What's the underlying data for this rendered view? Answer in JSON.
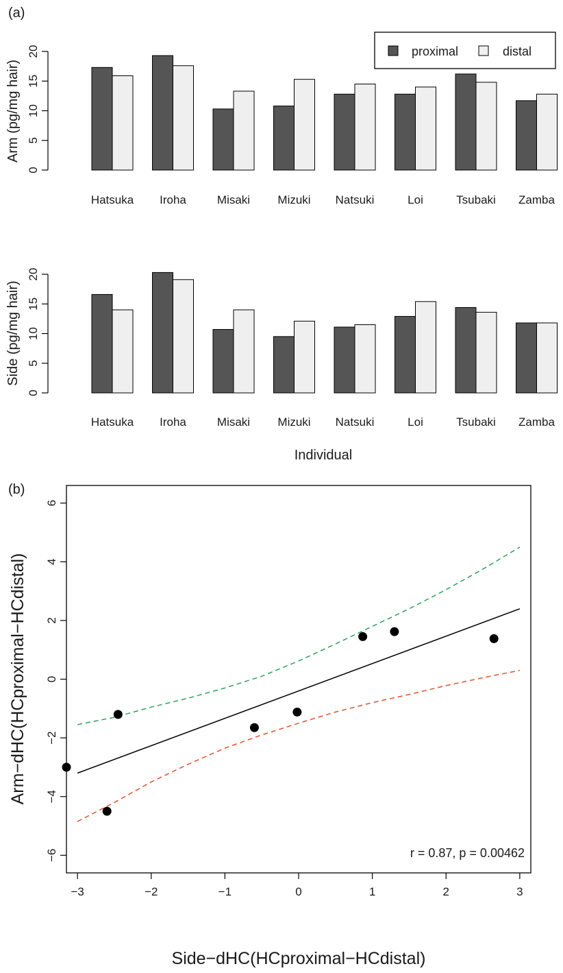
{
  "chart_data": [
    {
      "type": "bar",
      "panel_label": "(a)",
      "ylabel": "Arm (pg/mg hair)",
      "xlabel": "",
      "ylim": [
        0,
        20
      ],
      "yticks": [
        0,
        5,
        10,
        15,
        20
      ],
      "categories": [
        "Hatsuka",
        "Iroha",
        "Misaki",
        "Mizuki",
        "Natsuki",
        "Loi",
        "Tsubaki",
        "Zamba"
      ],
      "series": [
        {
          "name": "proximal",
          "color": "#555555",
          "values": [
            17.3,
            19.3,
            10.3,
            10.8,
            12.8,
            12.8,
            16.2,
            11.7
          ]
        },
        {
          "name": "distal",
          "color": "#efefef",
          "values": [
            15.9,
            17.6,
            13.3,
            15.3,
            14.5,
            14.0,
            14.8,
            12.8
          ]
        }
      ],
      "legend": {
        "position": "top-right",
        "entries": [
          "proximal",
          "distal"
        ]
      },
      "grid": false
    },
    {
      "type": "bar",
      "ylabel": "Side (pg/mg hair)",
      "xlabel": "Individual",
      "ylim": [
        0,
        20
      ],
      "yticks": [
        0,
        5,
        10,
        15,
        20
      ],
      "categories": [
        "Hatsuka",
        "Iroha",
        "Misaki",
        "Mizuki",
        "Natsuki",
        "Loi",
        "Tsubaki",
        "Zamba"
      ],
      "series": [
        {
          "name": "proximal",
          "color": "#555555",
          "values": [
            16.6,
            20.3,
            10.7,
            9.5,
            11.1,
            12.9,
            14.4,
            11.8
          ]
        },
        {
          "name": "distal",
          "color": "#efefef",
          "values": [
            14.0,
            19.1,
            14.0,
            12.1,
            11.5,
            15.4,
            13.6,
            11.8
          ]
        }
      ],
      "grid": false
    },
    {
      "type": "scatter",
      "panel_label": "(b)",
      "xlabel": "Side−dHC(HCproximal−HCdistal)",
      "ylabel": "Arm−dHC(HCproximal−HCdistal)",
      "xlim": [
        -3.15,
        3.15
      ],
      "ylim": [
        -6.6,
        6.6
      ],
      "xticks": [
        -3,
        -2,
        -1,
        0,
        1,
        2,
        3
      ],
      "xtick_labels": [
        "−3",
        "−2",
        "−1",
        "0",
        "1",
        "2",
        "3"
      ],
      "yticks": [
        -6,
        -4,
        -2,
        0,
        2,
        4,
        6
      ],
      "ytick_labels": [
        "−6",
        "−4",
        "−2",
        "0",
        "2",
        "4",
        "6"
      ],
      "points": [
        {
          "x": -3.15,
          "y": -3.0
        },
        {
          "x": -2.6,
          "y": -4.5
        },
        {
          "x": -2.45,
          "y": -1.2
        },
        {
          "x": -0.6,
          "y": -1.65
        },
        {
          "x": -0.02,
          "y": -1.12
        },
        {
          "x": 0.87,
          "y": 1.45
        },
        {
          "x": 1.3,
          "y": 1.62
        },
        {
          "x": 2.65,
          "y": 1.38
        }
      ],
      "fit_line": {
        "color": "#000000",
        "x": [
          -3,
          3
        ],
        "y": [
          -3.2,
          2.4
        ]
      },
      "upper_band": {
        "color": "#2ca05a",
        "x": [
          -3,
          -2.5,
          -2,
          -1.5,
          -1,
          -0.5,
          0,
          0.5,
          1,
          1.5,
          2,
          2.5,
          3
        ],
        "y": [
          -1.55,
          -1.3,
          -0.95,
          -0.65,
          -0.3,
          0.1,
          0.62,
          1.2,
          1.8,
          2.4,
          3.05,
          3.75,
          4.5
        ]
      },
      "lower_band": {
        "color": "#e0502a",
        "x": [
          -3,
          -2.5,
          -2,
          -1.5,
          -1,
          -0.5,
          0,
          0.5,
          1,
          1.5,
          2,
          2.5,
          3
        ],
        "y": [
          -4.85,
          -4.2,
          -3.5,
          -2.9,
          -2.35,
          -1.9,
          -1.5,
          -1.12,
          -0.8,
          -0.52,
          -0.22,
          0.05,
          0.3
        ]
      },
      "annotation": "r = 0.87, p = 0.00462",
      "grid": false
    }
  ]
}
